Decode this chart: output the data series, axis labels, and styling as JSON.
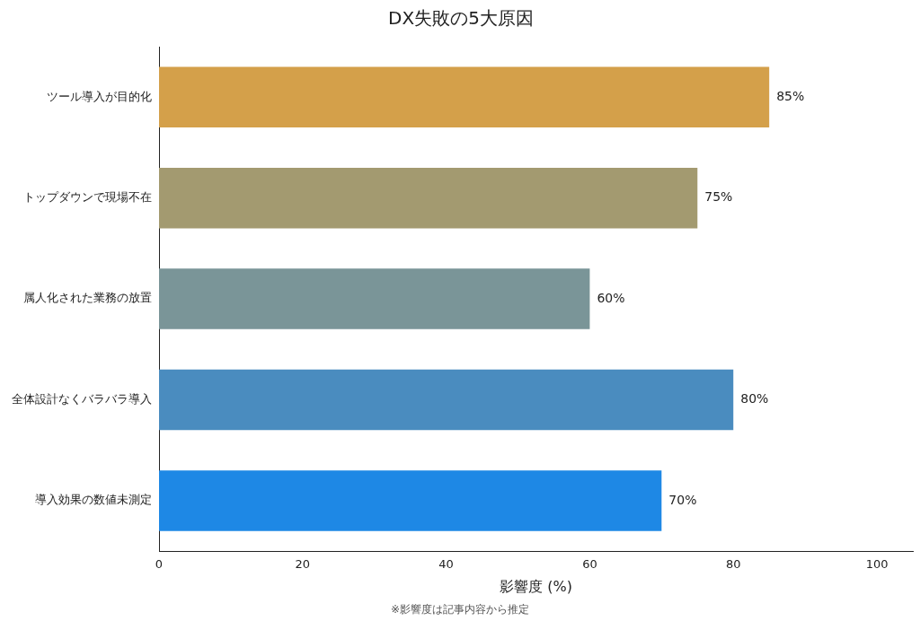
{
  "chart_data": {
    "type": "bar",
    "orientation": "horizontal",
    "title": "DX失敗の5大原因",
    "xlabel": "影響度 (%)",
    "categories": [
      "ツール導入が目的化",
      "トップダウンで現場不在",
      "属人化された業務の放置",
      "全体設計なくバラバラ導入",
      "導入効果の数値未測定"
    ],
    "values": [
      85,
      75,
      60,
      80,
      70
    ],
    "colors": [
      "#d4a04a",
      "#a39a70",
      "#7a9598",
      "#4a8cbf",
      "#1e88e5"
    ],
    "value_labels": [
      "85%",
      "75%",
      "60%",
      "80%",
      "70%"
    ],
    "xlim": [
      0,
      105
    ],
    "xticks": [
      0,
      20,
      40,
      60,
      80,
      100
    ],
    "grid": false,
    "legend": false,
    "annotations": [
      "※影響度は記事内容から推定"
    ]
  }
}
